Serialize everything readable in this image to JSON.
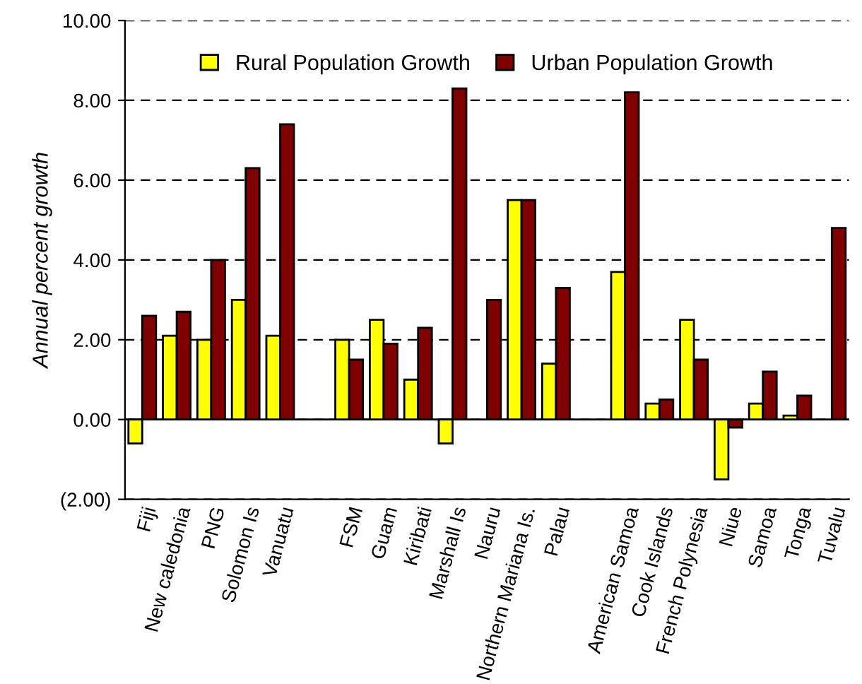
{
  "chart_data": {
    "type": "bar",
    "ylabel": "Annual percent growth",
    "categories": [
      "Fiji",
      "New caledonia",
      "PNG",
      "Solomon Is",
      "Vanuatu",
      null,
      "FSM",
      "Guam",
      "Kiribati",
      "Marshall Is",
      "Nauru",
      "Northern Mariana Is.",
      "Palau",
      null,
      "American Samoa",
      "Cook Islands",
      "French Polynesia",
      "Niue",
      "Samoa",
      "Tonga",
      "Tuvalu"
    ],
    "series": [
      {
        "name": "Rural Population Growth",
        "color": "#ffff00",
        "values": [
          -0.6,
          2.1,
          2.0,
          3.0,
          2.1,
          null,
          2.0,
          2.5,
          1.0,
          -0.6,
          null,
          5.5,
          1.4,
          null,
          3.7,
          0.4,
          2.5,
          -1.5,
          0.4,
          0.1,
          null
        ]
      },
      {
        "name": "Urban Population Growth",
        "color": "#800000",
        "values": [
          2.6,
          2.7,
          4.0,
          6.3,
          7.4,
          null,
          1.5,
          1.9,
          2.3,
          8.3,
          3.0,
          5.5,
          3.3,
          null,
          8.2,
          0.5,
          1.5,
          -0.2,
          1.2,
          0.6,
          4.8
        ]
      }
    ],
    "ylim": [
      -2,
      10
    ],
    "yticks": [
      {
        "value": -2,
        "label": "(2.00)"
      },
      {
        "value": 0,
        "label": "0.00"
      },
      {
        "value": 2,
        "label": "2.00"
      },
      {
        "value": 4,
        "label": "4.00"
      },
      {
        "value": 6,
        "label": "6.00"
      },
      {
        "value": 8,
        "label": "8.00"
      },
      {
        "value": 10,
        "label": "10.00"
      }
    ],
    "grid": "y",
    "legend": "top",
    "ref_lines": [
      {
        "axis": "y",
        "value": 0,
        "color": "#000000",
        "line_style": "solid"
      }
    ]
  }
}
